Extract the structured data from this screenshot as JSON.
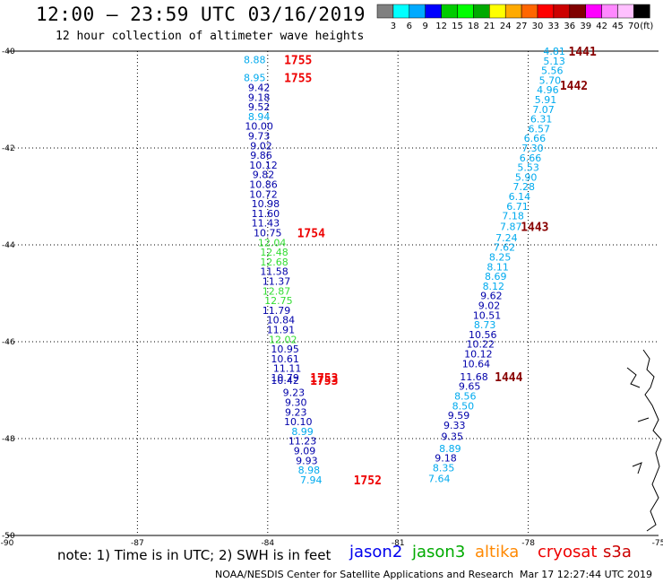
{
  "header": {
    "title": "12:00 — 23:59 UTC 03/16/2019",
    "subtitle": "12 hour collection of altimeter wave heights"
  },
  "colorbar": {
    "unit": "(ft)",
    "ticks": [
      "3",
      "6",
      "9",
      "12",
      "15",
      "18",
      "21",
      "24",
      "27",
      "30",
      "33",
      "36",
      "39",
      "42",
      "45",
      "70"
    ],
    "colors": [
      "#808080",
      "#00ffff",
      "#00aaff",
      "#0000ff",
      "#00cc00",
      "#00ff00",
      "#00aa00",
      "#ffff00",
      "#ffaa00",
      "#ff6600",
      "#ff0000",
      "#cc0000",
      "#800000",
      "#ff00ff",
      "#ff88ff",
      "#ffc0ff",
      "#000000"
    ]
  },
  "footer": {
    "note": "note: 1) Time is in UTC; 2) SWH is in feet",
    "missions": [
      {
        "name": "jason2",
        "color": "#0000ee"
      },
      {
        "name": "jason3",
        "color": "#00aa00"
      },
      {
        "name": "altika",
        "color": "#ff8800"
      },
      {
        "name": "cryosat",
        "color": "#ee0000"
      },
      {
        "name": "s3a",
        "color": "#cc0000"
      }
    ],
    "credit": "NOAA/NESDIS Center for Satellite Applications and Research",
    "timestamp": "Mar 17 12:27:44 UTC 2019"
  },
  "chart_data": {
    "type": "scatter",
    "xlim": [
      -90,
      -75
    ],
    "ylim": [
      -50,
      -40
    ],
    "x_ticks": [
      "-90",
      "-87",
      "-84",
      "-81",
      "-78",
      "-75"
    ],
    "y_ticks": [
      "-40",
      "-42",
      "-44",
      "-46",
      "-48",
      "-50"
    ],
    "grid": true,
    "colors": {
      "a": "#00aaee",
      "b": "#0000aa",
      "c": "#33dd33"
    },
    "west_track": [
      {
        "x": -84.3,
        "y": -40.18,
        "v": "8.88",
        "c": "a"
      },
      {
        "x": -84.3,
        "y": -40.55,
        "v": "8.95",
        "c": "a"
      },
      {
        "x": -84.2,
        "y": -40.75,
        "v": "9.42",
        "c": "b"
      },
      {
        "x": -84.2,
        "y": -40.95,
        "v": "9.18",
        "c": "b"
      },
      {
        "x": -84.2,
        "y": -41.15,
        "v": "9.52",
        "c": "b"
      },
      {
        "x": -84.2,
        "y": -41.35,
        "v": "8.94",
        "c": "a"
      },
      {
        "x": -84.2,
        "y": -41.55,
        "v": "10.00",
        "c": "b"
      },
      {
        "x": -84.2,
        "y": -41.75,
        "v": "9.73",
        "c": "b"
      },
      {
        "x": -84.15,
        "y": -41.95,
        "v": "9.02",
        "c": "b"
      },
      {
        "x": -84.15,
        "y": -42.15,
        "v": "9.86",
        "c": "b"
      },
      {
        "x": -84.1,
        "y": -42.35,
        "v": "10.12",
        "c": "b"
      },
      {
        "x": -84.1,
        "y": -42.55,
        "v": "9.82",
        "c": "b"
      },
      {
        "x": -84.1,
        "y": -42.75,
        "v": "10.86",
        "c": "b"
      },
      {
        "x": -84.1,
        "y": -42.95,
        "v": "10.72",
        "c": "b"
      },
      {
        "x": -84.05,
        "y": -43.15,
        "v": "10.98",
        "c": "b"
      },
      {
        "x": -84.05,
        "y": -43.35,
        "v": "11.60",
        "c": "b"
      },
      {
        "x": -84.05,
        "y": -43.55,
        "v": "11.43",
        "c": "b"
      },
      {
        "x": -84.0,
        "y": -43.75,
        "v": "10.75",
        "c": "b"
      },
      {
        "x": -83.9,
        "y": -43.95,
        "v": "12.04",
        "c": "c"
      },
      {
        "x": -83.85,
        "y": -44.15,
        "v": "12.48",
        "c": "c"
      },
      {
        "x": -83.85,
        "y": -44.35,
        "v": "12.68",
        "c": "c"
      },
      {
        "x": -83.85,
        "y": -44.55,
        "v": "11.58",
        "c": "b"
      },
      {
        "x": -83.8,
        "y": -44.75,
        "v": "11.37",
        "c": "b"
      },
      {
        "x": -83.8,
        "y": -44.95,
        "v": "12.87",
        "c": "c"
      },
      {
        "x": -83.75,
        "y": -45.15,
        "v": "12.75",
        "c": "c"
      },
      {
        "x": -83.8,
        "y": -45.35,
        "v": "11.79",
        "c": "b"
      },
      {
        "x": -83.7,
        "y": -45.55,
        "v": "10.84",
        "c": "b"
      },
      {
        "x": -83.7,
        "y": -45.75,
        "v": "11.91",
        "c": "b"
      },
      {
        "x": -83.65,
        "y": -45.95,
        "v": "12.02",
        "c": "c"
      },
      {
        "x": -83.6,
        "y": -46.15,
        "v": "10.95",
        "c": "b"
      },
      {
        "x": -83.6,
        "y": -46.35,
        "v": "10.61",
        "c": "b"
      },
      {
        "x": -83.55,
        "y": -46.55,
        "v": "11.11",
        "c": "b"
      },
      {
        "x": -83.6,
        "y": -46.74,
        "v": "10.79",
        "c": "b"
      },
      {
        "x": -83.6,
        "y": -46.8,
        "v": "10.42",
        "c": "b"
      },
      {
        "x": -83.4,
        "y": -47.05,
        "v": "9.23",
        "c": "b"
      },
      {
        "x": -83.35,
        "y": -47.25,
        "v": "9.30",
        "c": "b"
      },
      {
        "x": -83.35,
        "y": -47.45,
        "v": "9.23",
        "c": "b"
      },
      {
        "x": -83.3,
        "y": -47.65,
        "v": "10.10",
        "c": "b"
      },
      {
        "x": -83.2,
        "y": -47.85,
        "v": "8.99",
        "c": "a"
      },
      {
        "x": -83.2,
        "y": -48.05,
        "v": "11.23",
        "c": "b"
      },
      {
        "x": -83.15,
        "y": -48.25,
        "v": "9.09",
        "c": "b"
      },
      {
        "x": -83.1,
        "y": -48.45,
        "v": "9.93",
        "c": "b"
      },
      {
        "x": -83.05,
        "y": -48.65,
        "v": "8.98",
        "c": "a"
      },
      {
        "x": -83.0,
        "y": -48.85,
        "v": "7.94",
        "c": "a"
      }
    ],
    "east_track": [
      {
        "x": -77.4,
        "y": -40.0,
        "v": "4.81",
        "c": "a"
      },
      {
        "x": -77.4,
        "y": -40.2,
        "v": "5.13",
        "c": "a"
      },
      {
        "x": -77.45,
        "y": -40.4,
        "v": "5.56",
        "c": "a"
      },
      {
        "x": -77.5,
        "y": -40.6,
        "v": "5.70",
        "c": "a"
      },
      {
        "x": -77.55,
        "y": -40.8,
        "v": "4.96",
        "c": "a"
      },
      {
        "x": -77.6,
        "y": -41.0,
        "v": "5.91",
        "c": "a"
      },
      {
        "x": -77.65,
        "y": -41.2,
        "v": "7.07",
        "c": "a"
      },
      {
        "x": -77.7,
        "y": -41.4,
        "v": "6.31",
        "c": "a"
      },
      {
        "x": -77.75,
        "y": -41.6,
        "v": "6.57",
        "c": "a"
      },
      {
        "x": -77.85,
        "y": -41.8,
        "v": "6.66",
        "c": "a"
      },
      {
        "x": -77.9,
        "y": -42.0,
        "v": "7.30",
        "c": "a"
      },
      {
        "x": -77.95,
        "y": -42.2,
        "v": "6.66",
        "c": "a"
      },
      {
        "x": -78.0,
        "y": -42.4,
        "v": "5.53",
        "c": "a"
      },
      {
        "x": -78.05,
        "y": -42.6,
        "v": "5.90",
        "c": "a"
      },
      {
        "x": -78.1,
        "y": -42.8,
        "v": "7.28",
        "c": "a"
      },
      {
        "x": -78.2,
        "y": -43.0,
        "v": "6.14",
        "c": "a"
      },
      {
        "x": -78.25,
        "y": -43.2,
        "v": "6.71",
        "c": "a"
      },
      {
        "x": -78.35,
        "y": -43.4,
        "v": "7.18",
        "c": "a"
      },
      {
        "x": -78.4,
        "y": -43.62,
        "v": "7.87",
        "c": "a"
      },
      {
        "x": -78.5,
        "y": -43.85,
        "v": "7.24",
        "c": "a"
      },
      {
        "x": -78.55,
        "y": -44.05,
        "v": "7.62",
        "c": "a"
      },
      {
        "x": -78.65,
        "y": -44.25,
        "v": "8.25",
        "c": "a"
      },
      {
        "x": -78.7,
        "y": -44.45,
        "v": "8.11",
        "c": "a"
      },
      {
        "x": -78.75,
        "y": -44.65,
        "v": "8.69",
        "c": "a"
      },
      {
        "x": -78.8,
        "y": -44.85,
        "v": "8.12",
        "c": "a"
      },
      {
        "x": -78.85,
        "y": -45.05,
        "v": "9.62",
        "c": "b"
      },
      {
        "x": -78.9,
        "y": -45.25,
        "v": "9.02",
        "c": "b"
      },
      {
        "x": -78.95,
        "y": -45.45,
        "v": "10.51",
        "c": "b"
      },
      {
        "x": -79.0,
        "y": -45.65,
        "v": "8.73",
        "c": "a"
      },
      {
        "x": -79.05,
        "y": -45.85,
        "v": "10.56",
        "c": "b"
      },
      {
        "x": -79.1,
        "y": -46.05,
        "v": "10.22",
        "c": "b"
      },
      {
        "x": -79.15,
        "y": -46.25,
        "v": "10.12",
        "c": "b"
      },
      {
        "x": -79.2,
        "y": -46.45,
        "v": "10.64",
        "c": "b"
      },
      {
        "x": -79.25,
        "y": -46.72,
        "v": "11.68",
        "c": "b"
      },
      {
        "x": -79.35,
        "y": -46.92,
        "v": "9.65",
        "c": "b"
      },
      {
        "x": -79.45,
        "y": -47.12,
        "v": "8.56",
        "c": "a"
      },
      {
        "x": -79.5,
        "y": -47.32,
        "v": "8.50",
        "c": "a"
      },
      {
        "x": -79.6,
        "y": -47.52,
        "v": "9.59",
        "c": "b"
      },
      {
        "x": -79.7,
        "y": -47.72,
        "v": "9.33",
        "c": "b"
      },
      {
        "x": -79.75,
        "y": -47.95,
        "v": "9.35",
        "c": "b"
      },
      {
        "x": -79.8,
        "y": -48.2,
        "v": "8.89",
        "c": "a"
      },
      {
        "x": -79.9,
        "y": -48.4,
        "v": "9.18",
        "c": "b"
      },
      {
        "x": -79.95,
        "y": -48.6,
        "v": "8.35",
        "c": "a"
      },
      {
        "x": -80.05,
        "y": -48.82,
        "v": "7.64",
        "c": "a"
      }
    ],
    "time_labels": [
      {
        "x": -83.3,
        "y": -40.18,
        "t": "1755",
        "color": "#ee0000"
      },
      {
        "x": -83.3,
        "y": -40.55,
        "t": "1755",
        "color": "#ee0000"
      },
      {
        "x": -83.0,
        "y": -43.75,
        "t": "1754",
        "color": "#ee0000"
      },
      {
        "x": -82.7,
        "y": -46.74,
        "t": "1753",
        "color": "#ee0000"
      },
      {
        "x": -82.7,
        "y": -46.8,
        "t": "1753",
        "color": "#ee0000"
      },
      {
        "x": -81.7,
        "y": -48.85,
        "t": "1752",
        "color": "#ee0000"
      },
      {
        "x": -76.75,
        "y": -40.0,
        "t": "1441",
        "color": "#880000"
      },
      {
        "x": -76.95,
        "y": -40.7,
        "t": "1442",
        "color": "#880000"
      },
      {
        "x": -77.85,
        "y": -43.62,
        "t": "1443",
        "color": "#880000"
      },
      {
        "x": -78.45,
        "y": -46.72,
        "t": "1444",
        "color": "#880000"
      }
    ]
  }
}
